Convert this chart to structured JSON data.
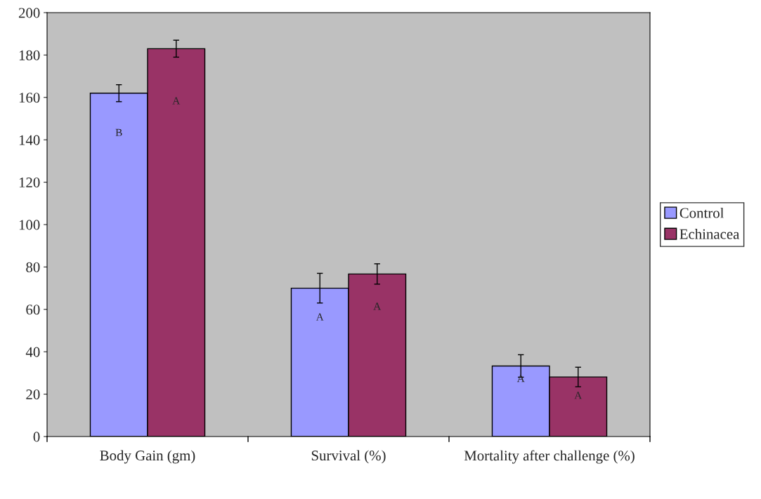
{
  "chart_data": {
    "type": "bar",
    "categories": [
      "Body Gain (gm)",
      "Survival (%)",
      "Mortality after challenge (%)"
    ],
    "series": [
      {
        "name": "Control",
        "color": "#9999ff",
        "values": [
          162,
          70,
          33.3
        ],
        "errors": [
          4,
          7,
          5.3
        ]
      },
      {
        "name": "Echinacea",
        "color": "#993366",
        "values": [
          183,
          76.7,
          28.1
        ],
        "errors": [
          4,
          4.8,
          4.6
        ]
      }
    ],
    "annotations": [
      {
        "text": "B",
        "x": "Body Gain (gm)",
        "y": 143
      },
      {
        "text": "A",
        "x": "Body Gain (gm)",
        "y": 158
      },
      {
        "text": "A",
        "x": "Survival (%)",
        "y": 56
      },
      {
        "text": "A",
        "x": "Survival (%)",
        "y": 61
      },
      {
        "text": "A",
        "x": "Mortality after challenge (%)",
        "y": 27
      },
      {
        "text": "A",
        "x": "Mortality after challenge (%)",
        "y": 19
      }
    ],
    "ylim": [
      0,
      200
    ],
    "yticks": [
      0,
      20,
      40,
      60,
      80,
      100,
      120,
      140,
      160,
      180,
      200
    ],
    "grid": false,
    "legend": "right"
  }
}
